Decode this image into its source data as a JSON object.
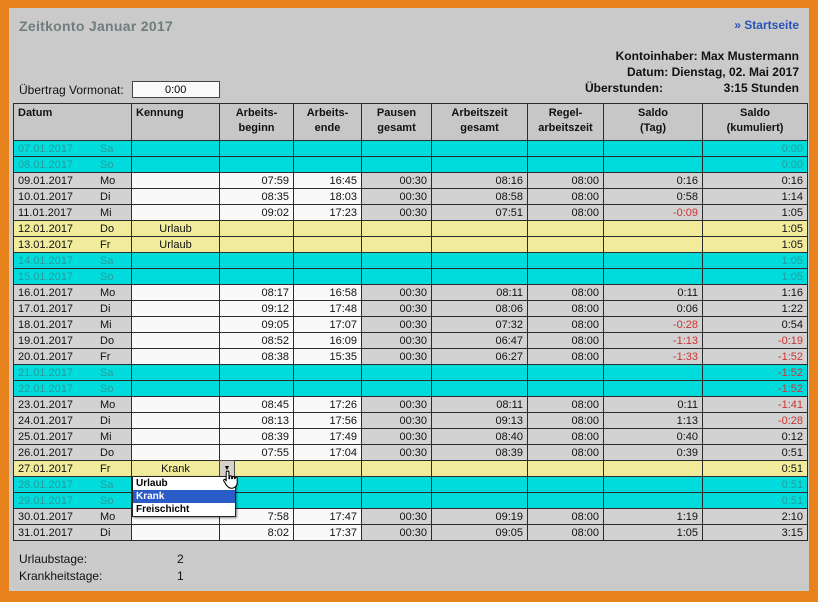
{
  "header": {
    "title": "Zeitkonto Januar 2017",
    "home_link": "» Startseite",
    "owner_line": "Kontoinhaber: Max Mustermann",
    "date_line": "Datum: Dienstag, 02. Mai 2017",
    "overtime_label": "Überstunden:",
    "overtime_value": "3:15 Stunden"
  },
  "carryover": {
    "label": "Übertrag Vormonat:",
    "value": "0:00"
  },
  "table": {
    "columns": [
      {
        "key": "datum",
        "label": "Datum"
      },
      {
        "key": "kennung",
        "label": "Kennung"
      },
      {
        "key": "arbeitsbeginn",
        "label": "Arbeits-\nbeginn"
      },
      {
        "key": "arbeitsende",
        "label": "Arbeits-\nende"
      },
      {
        "key": "pausen-gesamt",
        "label": "Pausen\ngesamt"
      },
      {
        "key": "arbeitszeit-gesamt",
        "label": "Arbeitszeit\ngesamt"
      },
      {
        "key": "regelarbeitszeit",
        "label": "Regel-\narbeitszeit"
      },
      {
        "key": "saldo-tag",
        "label": "Saldo\n(Tag)"
      },
      {
        "key": "saldo-kumuliert",
        "label": "Saldo\n(kumuliert)"
      }
    ],
    "rows": [
      {
        "date": "07.01.2017",
        "day": "Sa",
        "type": "weekend",
        "kennung": "",
        "begin": "",
        "end": "",
        "pause": "",
        "total": "",
        "regular": "",
        "saldo_day": "",
        "saldo_cum": "0:00"
      },
      {
        "date": "08.01.2017",
        "day": "So",
        "type": "weekend",
        "kennung": "",
        "begin": "",
        "end": "",
        "pause": "",
        "total": "",
        "regular": "",
        "saldo_day": "",
        "saldo_cum": "0:00"
      },
      {
        "date": "09.01.2017",
        "day": "Mo",
        "type": "work",
        "kennung": "",
        "begin": "07:59",
        "end": "16:45",
        "pause": "00:30",
        "total": "08:16",
        "regular": "08:00",
        "saldo_day": "0:16",
        "saldo_cum": "0:16"
      },
      {
        "date": "10.01.2017",
        "day": "Di",
        "type": "work",
        "kennung": "",
        "begin": "08:35",
        "end": "18:03",
        "pause": "00:30",
        "total": "08:58",
        "regular": "08:00",
        "saldo_day": "0:58",
        "saldo_cum": "1:14"
      },
      {
        "date": "11.01.2017",
        "day": "Mi",
        "type": "work",
        "kennung": "",
        "begin": "09:02",
        "end": "17:23",
        "pause": "00:30",
        "total": "07:51",
        "regular": "08:00",
        "saldo_day": "-0:09",
        "saldo_cum": "1:05"
      },
      {
        "date": "12.01.2017",
        "day": "Do",
        "type": "vacation",
        "kennung": "Urlaub",
        "begin": "",
        "end": "",
        "pause": "",
        "total": "",
        "regular": "",
        "saldo_day": "",
        "saldo_cum": "1:05"
      },
      {
        "date": "13.01.2017",
        "day": "Fr",
        "type": "vacation",
        "kennung": "Urlaub",
        "begin": "",
        "end": "",
        "pause": "",
        "total": "",
        "regular": "",
        "saldo_day": "",
        "saldo_cum": "1:05"
      },
      {
        "date": "14.01.2017",
        "day": "Sa",
        "type": "weekend",
        "kennung": "",
        "begin": "",
        "end": "",
        "pause": "",
        "total": "",
        "regular": "",
        "saldo_day": "",
        "saldo_cum": "1:05"
      },
      {
        "date": "15.01.2017",
        "day": "So",
        "type": "weekend",
        "kennung": "",
        "begin": "",
        "end": "",
        "pause": "",
        "total": "",
        "regular": "",
        "saldo_day": "",
        "saldo_cum": "1:05"
      },
      {
        "date": "16.01.2017",
        "day": "Mo",
        "type": "work",
        "kennung": "",
        "begin": "08:17",
        "end": "16:58",
        "pause": "00:30",
        "total": "08:11",
        "regular": "08:00",
        "saldo_day": "0:11",
        "saldo_cum": "1:16"
      },
      {
        "date": "17.01.2017",
        "day": "Di",
        "type": "work",
        "kennung": "",
        "begin": "09:12",
        "end": "17:48",
        "pause": "00:30",
        "total": "08:06",
        "regular": "08:00",
        "saldo_day": "0:06",
        "saldo_cum": "1:22"
      },
      {
        "date": "18.01.2017",
        "day": "Mi",
        "type": "work",
        "kennung": "",
        "begin": "09:05",
        "end": "17:07",
        "pause": "00:30",
        "total": "07:32",
        "regular": "08:00",
        "saldo_day": "-0:28",
        "saldo_cum": "0:54"
      },
      {
        "date": "19.01.2017",
        "day": "Do",
        "type": "work",
        "kennung": "",
        "begin": "08:52",
        "end": "16:09",
        "pause": "00:30",
        "total": "06:47",
        "regular": "08:00",
        "saldo_day": "-1:13",
        "saldo_cum": "-0:19"
      },
      {
        "date": "20.01.2017",
        "day": "Fr",
        "type": "work",
        "kennung": "",
        "begin": "08:38",
        "end": "15:35",
        "pause": "00:30",
        "total": "06:27",
        "regular": "08:00",
        "saldo_day": "-1:33",
        "saldo_cum": "-1:52"
      },
      {
        "date": "21.01.2017",
        "day": "Sa",
        "type": "weekend",
        "kennung": "",
        "begin": "",
        "end": "",
        "pause": "",
        "total": "",
        "regular": "",
        "saldo_day": "",
        "saldo_cum": "-1:52"
      },
      {
        "date": "22.01.2017",
        "day": "So",
        "type": "weekend",
        "kennung": "",
        "begin": "",
        "end": "",
        "pause": "",
        "total": "",
        "regular": "",
        "saldo_day": "",
        "saldo_cum": "-1:52"
      },
      {
        "date": "23.01.2017",
        "day": "Mo",
        "type": "work",
        "kennung": "",
        "begin": "08:45",
        "end": "17:26",
        "pause": "00:30",
        "total": "08:11",
        "regular": "08:00",
        "saldo_day": "0:11",
        "saldo_cum": "-1:41"
      },
      {
        "date": "24.01.2017",
        "day": "Di",
        "type": "work",
        "kennung": "",
        "begin": "08:13",
        "end": "17:56",
        "pause": "00:30",
        "total": "09:13",
        "regular": "08:00",
        "saldo_day": "1:13",
        "saldo_cum": "-0:28"
      },
      {
        "date": "25.01.2017",
        "day": "Mi",
        "type": "work",
        "kennung": "",
        "begin": "08:39",
        "end": "17:49",
        "pause": "00:30",
        "total": "08:40",
        "regular": "08:00",
        "saldo_day": "0:40",
        "saldo_cum": "0:12"
      },
      {
        "date": "26.01.2017",
        "day": "Do",
        "type": "work",
        "kennung": "",
        "begin": "07:55",
        "end": "17:04",
        "pause": "00:30",
        "total": "08:39",
        "regular": "08:00",
        "saldo_day": "0:39",
        "saldo_cum": "0:51"
      },
      {
        "date": "27.01.2017",
        "day": "Fr",
        "type": "sick",
        "kennung": "Krank",
        "begin": "",
        "end": "",
        "pause": "",
        "total": "",
        "regular": "",
        "saldo_day": "",
        "saldo_cum": "0:51",
        "dropdown_open": true
      },
      {
        "date": "28.01.2017",
        "day": "Sa",
        "type": "weekend",
        "kennung": "",
        "begin": "",
        "end": "",
        "pause": "",
        "total": "",
        "regular": "",
        "saldo_day": "",
        "saldo_cum": "0:51"
      },
      {
        "date": "29.01.2017",
        "day": "So",
        "type": "weekend",
        "kennung": "",
        "begin": "",
        "end": "",
        "pause": "",
        "total": "",
        "regular": "",
        "saldo_day": "",
        "saldo_cum": "0:51"
      },
      {
        "date": "30.01.2017",
        "day": "Mo",
        "type": "work",
        "kennung": "",
        "begin": "7:58",
        "end": "17:47",
        "pause": "00:30",
        "total": "09:19",
        "regular": "08:00",
        "saldo_day": "1:19",
        "saldo_cum": "2:10"
      },
      {
        "date": "31.01.2017",
        "day": "Di",
        "type": "work",
        "kennung": "",
        "begin": "8:02",
        "end": "17:37",
        "pause": "00:30",
        "total": "09:05",
        "regular": "08:00",
        "saldo_day": "1:05",
        "saldo_cum": "3:15"
      }
    ]
  },
  "dropdown": {
    "options": [
      "Urlaub",
      "Krank",
      "Freischicht"
    ],
    "selected": "Krank"
  },
  "summary": {
    "vacation_label": "Urlaubstage:",
    "vacation_days": "2",
    "sick_label": "Krankheitstage:",
    "sick_days": "1"
  },
  "colors": {
    "frame-orange": "#E8821C",
    "weekend-cyan": "#00DCDC",
    "weekend-text": "#259C9C",
    "vacation-yellow": "#F0EC9B",
    "negative-red": "#CC3333",
    "selection-blue": "#2A5CC8",
    "link-blue": "#2A52B8",
    "title-gray": "#6F7D7D"
  }
}
